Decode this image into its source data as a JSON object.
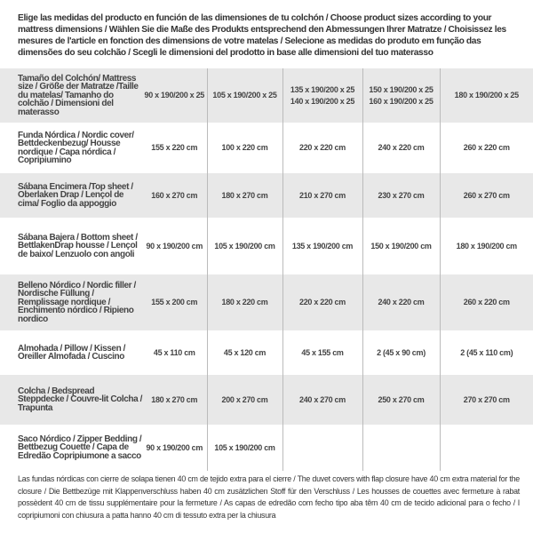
{
  "intro": "Elige las medidas del producto en función de las dimensiones de tu colchón / Choose product sizes according to your mattress dimensions / Wählen Sie die Maße des Produkts entsprechend den Abmessungen Ihrer Matratze / Choisissez les mesures de l'article en fonction des dimensions de votre matelas / Selecione as medidas do produto em função das dimensões do seu colchão / Scegli le dimensioni del prodotto in base alle dimensioni del tuo materasso",
  "table": {
    "header": {
      "label": "Tamaño del Colchón/ Mattress size / Größe der Matratze /Taille du matelas/ Tamanho do colchão / Dimensioni del materasso",
      "values": [
        "90 x 190/200 x 25",
        "105 x 190/200 x 25",
        "135 x 190/200 x 25\n140 x 190/200 x 25",
        "150 x 190/200 x 25\n160 x 190/200 x 25",
        "180 x 190/200 x 25"
      ]
    },
    "rows": [
      {
        "label": "Funda Nórdica / Nordic cover/ Bettdeckenbezug/ Housse nordique / Capa nórdica / Copripiumino",
        "values": [
          "155 x 220 cm",
          "100 x 220 cm",
          "220 x 220 cm",
          "240 x 220 cm",
          "260 x 220 cm"
        ]
      },
      {
        "label": "Sábana Encimera /Top sheet / Oberlaken Drap / Lençol de cima/ Foglio da appoggio",
        "values": [
          "160 x 270 cm",
          "180 x 270 cm",
          "210 x 270 cm",
          "230 x 270 cm",
          "260 x 270 cm"
        ]
      },
      {
        "label": "Sábana Bajera / Bottom sheet / BettlakenDrap housse / Lençol de baixo/ Lenzuolo con angoli",
        "values": [
          "90 x 190/200 cm",
          "105 x 190/200 cm",
          "135 x 190/200 cm",
          "150 x 190/200 cm",
          "180 x 190/200 cm"
        ]
      },
      {
        "label": "Belleno Nórdico / Nordic filler / Nordische Füllung / Remplissage nordique / Enchimento nórdico / Ripieno nordico",
        "values": [
          "155 x 200 cm",
          "180 x 220 cm",
          "220 x 220 cm",
          "240 x 220 cm",
          "260 x 220 cm"
        ]
      },
      {
        "label": "Almohada / Pillow / Kissen / Oreiller Almofada / Cuscino",
        "values": [
          "45 x 110 cm",
          "45 x 120 cm",
          "45 x 155 cm",
          "2 (45 x 90 cm)",
          "2 (45 x 110 cm)"
        ]
      },
      {
        "label": "Colcha / Bedspread Steppdecke / Couvre-lit Colcha / Trapunta",
        "values": [
          "180 x 270 cm",
          "200 x 270 cm",
          "240 x 270 cm",
          "250 x 270 cm",
          "270 x 270 cm"
        ]
      },
      {
        "label": "Saco Nórdico / Zipper Bedding / Bettbezug Couette / Capa de Edredão Copripiumone a sacco",
        "values": [
          "90 x 190/200 cm",
          "105 x 190/200 cm",
          "",
          "",
          ""
        ]
      }
    ]
  },
  "footnote": "Las fundas nórdicas con cierre de solapa tienen 40 cm de tejido extra para el cierre / The duvet covers with flap closure have 40 cm extra material for the closure / Die Bettbezüge mit Klappenverschluss haben 40 cm zusätzlichen Stoff für den Verschluss / Les housses de couettes avec fermeture à rabat possèdent 40 cm de tissu supplémentaire pour la fermeture / As capas de edredão com fecho tipo aba têm 40 cm de tecido adicional para o fecho / I copripiumoni con chiusura a patta hanno 40 cm di tessuto extra per la chiusura"
}
